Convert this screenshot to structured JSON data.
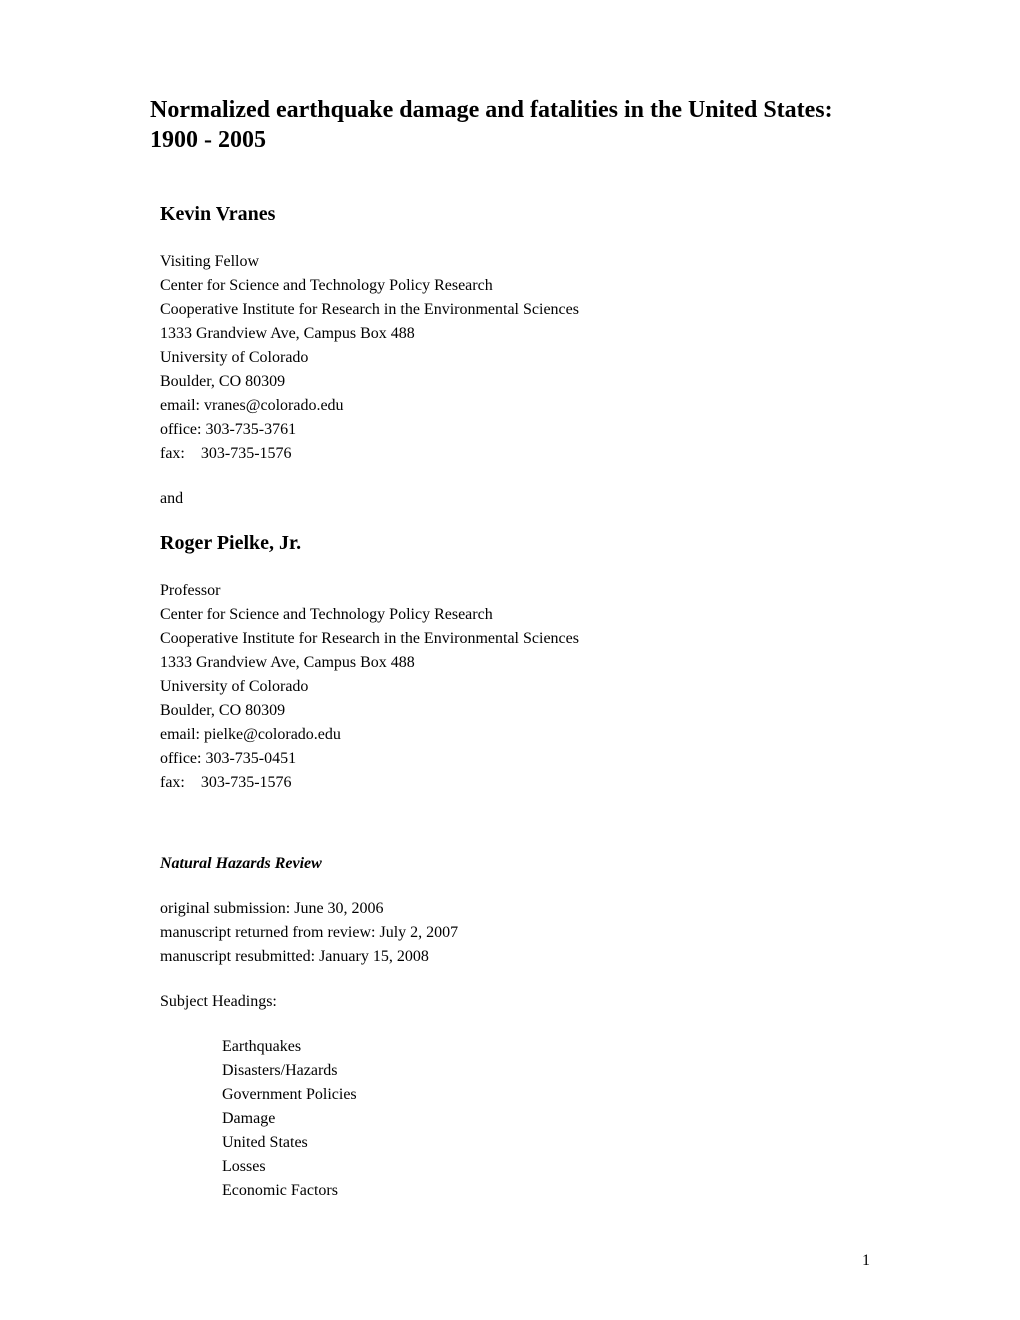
{
  "title": "Normalized earthquake damage and fatalities in the United States: 1900 - 2005",
  "authors": [
    {
      "name": "Kevin Vranes",
      "title": "Visiting Fellow",
      "affiliation1": "Center for Science and Technology Policy Research",
      "affiliation2": "Cooperative Institute for Research in the Environmental Sciences",
      "address1": "1333 Grandview Ave, Campus Box 488",
      "address2": "University of Colorado",
      "address3": "Boulder, CO 80309",
      "email": "email: vranes@colorado.edu",
      "office": "office: 303-735-3761",
      "fax": "fax:    303-735-1576"
    },
    {
      "name": "Roger Pielke, Jr.",
      "title": "Professor",
      "affiliation1": "Center for Science and Technology Policy Research",
      "affiliation2": "Cooperative Institute for Research in the Environmental Sciences",
      "address1": "1333 Grandview Ave, Campus Box 488",
      "address2": "University of Colorado",
      "address3": "Boulder, CO 80309",
      "email": "email: pielke@colorado.edu",
      "office": "office: 303-735-0451",
      "fax": "fax:    303-735-1576"
    }
  ],
  "connector": "and",
  "journal": "Natural Hazards Review",
  "submission": {
    "original": "original submission: June 30, 2006",
    "returned": "manuscript returned from review: July 2, 2007",
    "resubmitted": "manuscript resubmitted: January 15, 2008"
  },
  "subjectHeadingLabel": "Subject Headings:",
  "subjects": [
    "Earthquakes",
    "Disasters/Hazards",
    "Government Policies",
    "Damage",
    "United States",
    "Losses",
    "Economic Factors"
  ],
  "pageNumber": "1"
}
